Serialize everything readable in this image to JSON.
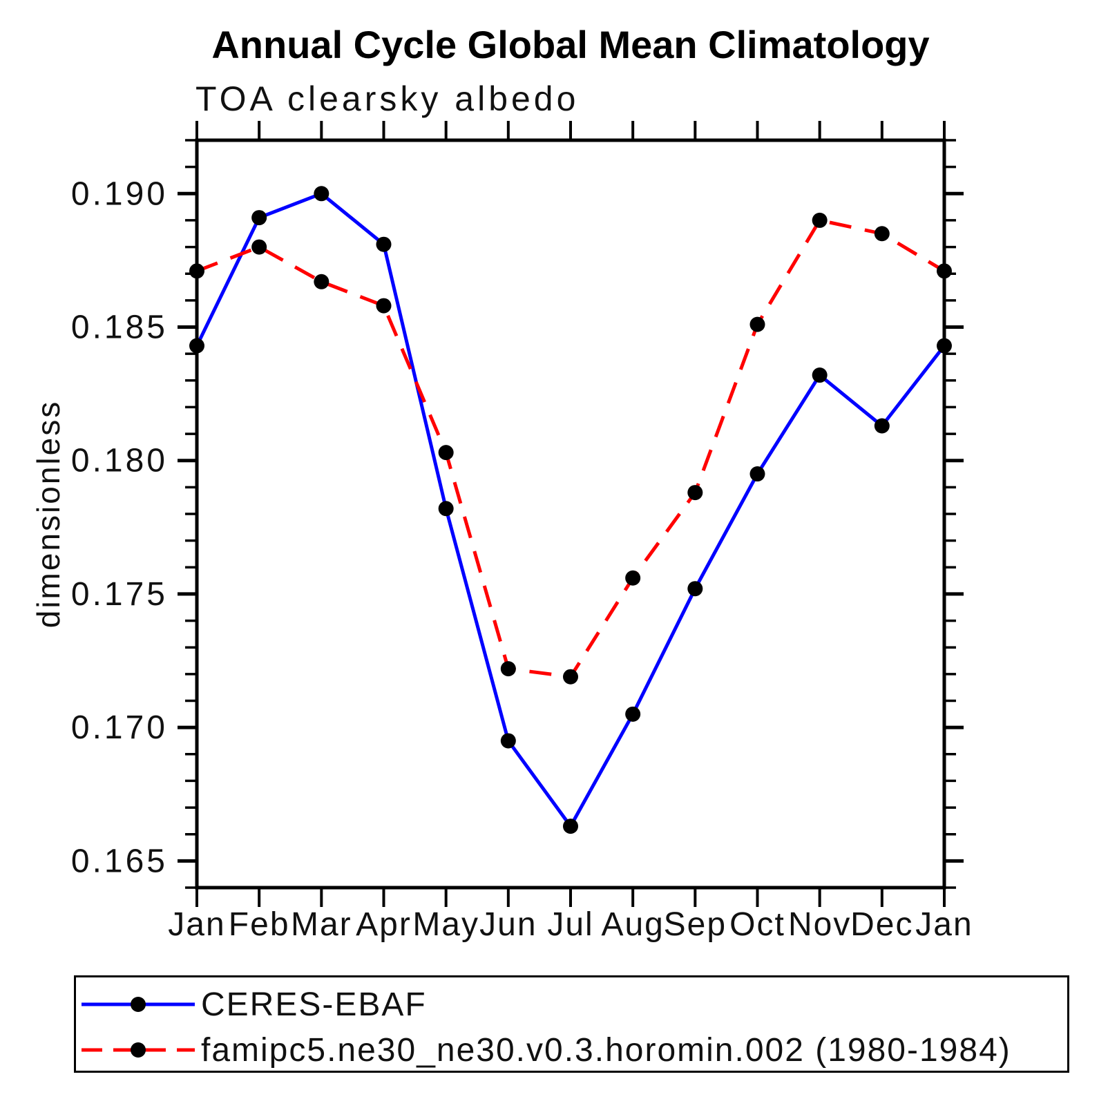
{
  "figure": {
    "title": "Annual Cycle Global Mean Climatology",
    "subtitle": "TOA clearsky albedo",
    "ylabel": "dimensionless"
  },
  "legend": {
    "position": "bottom",
    "items": [
      {
        "label": "CERES-EBAF",
        "color": "#0000ff",
        "style": "solid",
        "marker_color": "#000000"
      },
      {
        "label": "famipc5.ne30_ne30.v0.3.horomin.002 (1980-1984)",
        "color": "#ff0000",
        "style": "dashed",
        "marker_color": "#000000"
      }
    ]
  },
  "chart_data": {
    "type": "line",
    "title": "Annual Cycle Global Mean Climatology",
    "subtitle": "TOA clearsky albedo",
    "xlabel": "",
    "ylabel": "dimensionless",
    "categories": [
      "Jan",
      "Feb",
      "Mar",
      "Apr",
      "May",
      "Jun",
      "Jul",
      "Aug",
      "Sep",
      "Oct",
      "Nov",
      "Dec",
      "Jan"
    ],
    "ylim": [
      0.164,
      0.192
    ],
    "yticks_major": [
      0.165,
      0.17,
      0.175,
      0.18,
      0.185,
      0.19
    ],
    "ytick_labels": [
      "0.165",
      "0.170",
      "0.175",
      "0.180",
      "0.185",
      "0.190"
    ],
    "y_minor_step": 0.001,
    "grid": false,
    "legend_position": "bottom",
    "frame_color": "#000000",
    "series": [
      {
        "name": "CERES-EBAF",
        "color": "#0000ff",
        "style": "solid",
        "marker": "circle",
        "marker_color": "#000000",
        "values": [
          0.1843,
          0.1891,
          0.19,
          0.1881,
          0.1782,
          0.1695,
          0.1663,
          0.1705,
          0.1752,
          0.1795,
          0.1832,
          0.1813,
          0.1843
        ]
      },
      {
        "name": "famipc5.ne30_ne30.v0.3.horomin.002 (1980-1984)",
        "color": "#ff0000",
        "style": "dashed",
        "marker": "circle",
        "marker_color": "#000000",
        "values": [
          0.1871,
          0.188,
          0.1867,
          0.1858,
          0.1803,
          0.1722,
          0.1719,
          0.1756,
          0.1788,
          0.1851,
          0.189,
          0.1885,
          0.1871
        ]
      }
    ]
  }
}
